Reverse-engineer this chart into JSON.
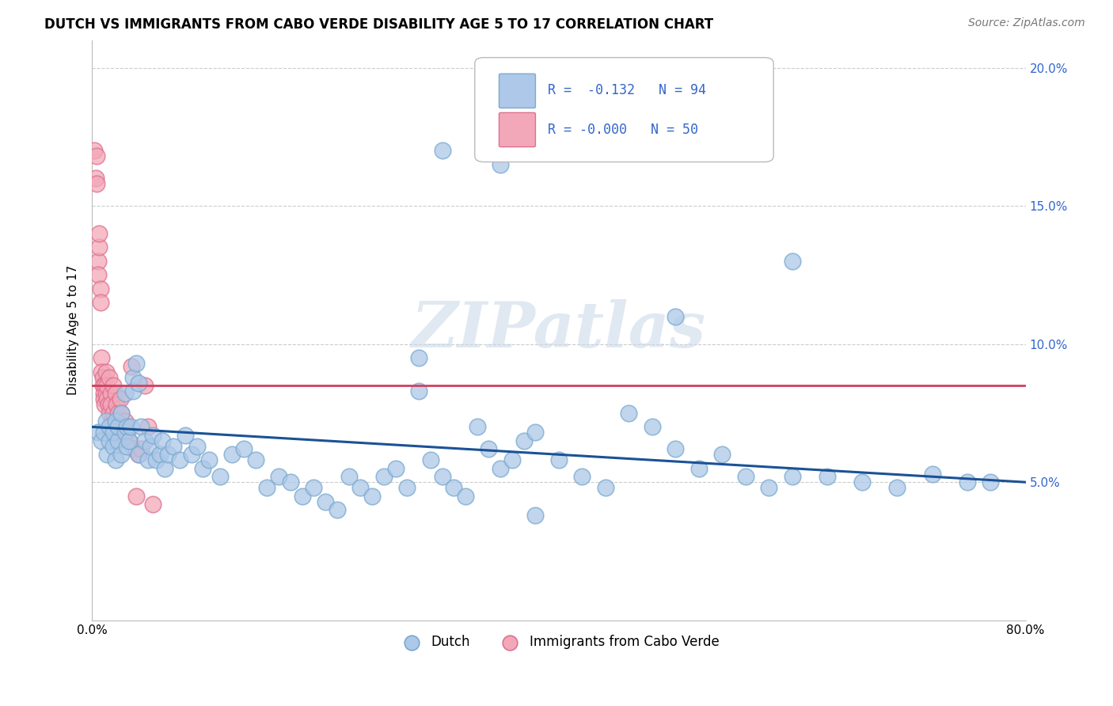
{
  "title": "DUTCH VS IMMIGRANTS FROM CABO VERDE DISABILITY AGE 5 TO 17 CORRELATION CHART",
  "source": "Source: ZipAtlas.com",
  "ylabel": "Disability Age 5 to 17",
  "xlim": [
    0.0,
    0.8
  ],
  "ylim": [
    0.0,
    0.21
  ],
  "xticks": [
    0.0,
    0.1,
    0.2,
    0.3,
    0.4,
    0.5,
    0.6,
    0.7,
    0.8
  ],
  "xticklabels": [
    "0.0%",
    "",
    "",
    "",
    "",
    "",
    "",
    "",
    "80.0%"
  ],
  "yticks": [
    0.0,
    0.05,
    0.1,
    0.15,
    0.2
  ],
  "yticklabels": [
    "",
    "5.0%",
    "10.0%",
    "15.0%",
    "20.0%"
  ],
  "dutch_R": -0.132,
  "dutch_N": 94,
  "cabo_R": -0.0,
  "cabo_N": 50,
  "dutch_color": "#adc8e8",
  "cabo_color": "#f2a8b8",
  "dutch_edge_color": "#7aaad0",
  "cabo_edge_color": "#e07090",
  "dutch_line_color": "#1a5296",
  "cabo_line_color": "#d04060",
  "tick_color": "#3366cc",
  "background_color": "#ffffff",
  "grid_color": "#cccccc",
  "watermark": "ZIPatlas",
  "dutch_x": [
    0.005,
    0.008,
    0.01,
    0.012,
    0.013,
    0.015,
    0.015,
    0.018,
    0.018,
    0.02,
    0.02,
    0.022,
    0.022,
    0.025,
    0.025,
    0.028,
    0.028,
    0.03,
    0.03,
    0.032,
    0.033,
    0.035,
    0.035,
    0.038,
    0.04,
    0.04,
    0.042,
    0.045,
    0.048,
    0.05,
    0.052,
    0.055,
    0.058,
    0.06,
    0.062,
    0.065,
    0.07,
    0.075,
    0.08,
    0.085,
    0.09,
    0.095,
    0.1,
    0.11,
    0.12,
    0.13,
    0.14,
    0.15,
    0.16,
    0.17,
    0.18,
    0.19,
    0.2,
    0.21,
    0.22,
    0.23,
    0.24,
    0.25,
    0.26,
    0.27,
    0.28,
    0.29,
    0.3,
    0.31,
    0.32,
    0.33,
    0.34,
    0.35,
    0.36,
    0.37,
    0.38,
    0.4,
    0.42,
    0.44,
    0.46,
    0.48,
    0.5,
    0.52,
    0.54,
    0.56,
    0.58,
    0.6,
    0.63,
    0.66,
    0.69,
    0.72,
    0.75,
    0.77,
    0.3,
    0.35,
    0.5,
    0.6,
    0.28,
    0.38
  ],
  "dutch_y": [
    0.068,
    0.065,
    0.068,
    0.072,
    0.06,
    0.065,
    0.07,
    0.063,
    0.068,
    0.072,
    0.058,
    0.065,
    0.07,
    0.075,
    0.06,
    0.068,
    0.082,
    0.063,
    0.07,
    0.065,
    0.07,
    0.088,
    0.083,
    0.093,
    0.086,
    0.06,
    0.07,
    0.065,
    0.058,
    0.063,
    0.067,
    0.058,
    0.06,
    0.065,
    0.055,
    0.06,
    0.063,
    0.058,
    0.067,
    0.06,
    0.063,
    0.055,
    0.058,
    0.052,
    0.06,
    0.062,
    0.058,
    0.048,
    0.052,
    0.05,
    0.045,
    0.048,
    0.043,
    0.04,
    0.052,
    0.048,
    0.045,
    0.052,
    0.055,
    0.048,
    0.083,
    0.058,
    0.052,
    0.048,
    0.045,
    0.07,
    0.062,
    0.055,
    0.058,
    0.065,
    0.068,
    0.058,
    0.052,
    0.048,
    0.075,
    0.07,
    0.062,
    0.055,
    0.06,
    0.052,
    0.048,
    0.052,
    0.052,
    0.05,
    0.048,
    0.053,
    0.05,
    0.05,
    0.17,
    0.165,
    0.11,
    0.13,
    0.095,
    0.038
  ],
  "cabo_x": [
    0.002,
    0.003,
    0.004,
    0.004,
    0.005,
    0.005,
    0.006,
    0.006,
    0.007,
    0.007,
    0.008,
    0.008,
    0.009,
    0.009,
    0.01,
    0.01,
    0.011,
    0.011,
    0.012,
    0.012,
    0.013,
    0.013,
    0.014,
    0.015,
    0.015,
    0.016,
    0.016,
    0.017,
    0.018,
    0.018,
    0.019,
    0.02,
    0.021,
    0.022,
    0.023,
    0.024,
    0.025,
    0.026,
    0.027,
    0.028,
    0.03,
    0.032,
    0.034,
    0.036,
    0.038,
    0.04,
    0.042,
    0.045,
    0.048,
    0.052
  ],
  "cabo_y": [
    0.17,
    0.16,
    0.158,
    0.168,
    0.13,
    0.125,
    0.135,
    0.14,
    0.12,
    0.115,
    0.095,
    0.09,
    0.088,
    0.085,
    0.082,
    0.08,
    0.078,
    0.085,
    0.082,
    0.09,
    0.085,
    0.08,
    0.078,
    0.088,
    0.075,
    0.082,
    0.078,
    0.072,
    0.075,
    0.085,
    0.07,
    0.082,
    0.078,
    0.075,
    0.072,
    0.08,
    0.075,
    0.07,
    0.068,
    0.072,
    0.068,
    0.065,
    0.092,
    0.062,
    0.045,
    0.06,
    0.062,
    0.085,
    0.07,
    0.042
  ],
  "legend_dutch_label": "R =  -0.132   N = 94",
  "legend_cabo_label": "R = -0.000   N = 50",
  "bottom_legend_dutch": "Dutch",
  "bottom_legend_cabo": "Immigrants from Cabo Verde"
}
